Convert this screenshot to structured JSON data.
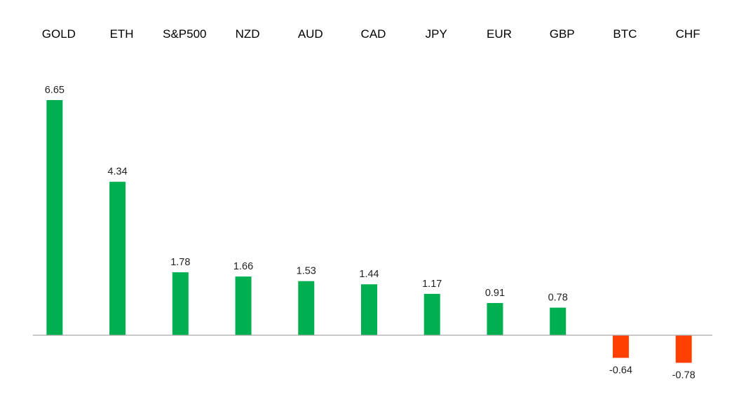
{
  "chart_data": {
    "type": "bar",
    "title": "",
    "xlabel": "",
    "ylabel": "",
    "categories": [
      "GOLD",
      "ETH",
      "S&P500",
      "NZD",
      "AUD",
      "CAD",
      "JPY",
      "EUR",
      "GBP",
      "BTC",
      "CHF"
    ],
    "values": [
      6.65,
      4.34,
      1.78,
      1.66,
      1.53,
      1.44,
      1.17,
      0.91,
      0.78,
      -0.64,
      -0.78
    ],
    "value_labels": [
      "6.65",
      "4.34",
      "1.78",
      "1.66",
      "1.53",
      "1.44",
      "1.17",
      "0.91",
      "0.78",
      "-0.64",
      "-0.78"
    ],
    "ylim": [
      -0.78,
      6.65
    ],
    "grid": false,
    "legend": "none",
    "colors": {
      "positive": "#00b050",
      "negative": "#ff4000",
      "axis": "#a6a6a6"
    }
  }
}
